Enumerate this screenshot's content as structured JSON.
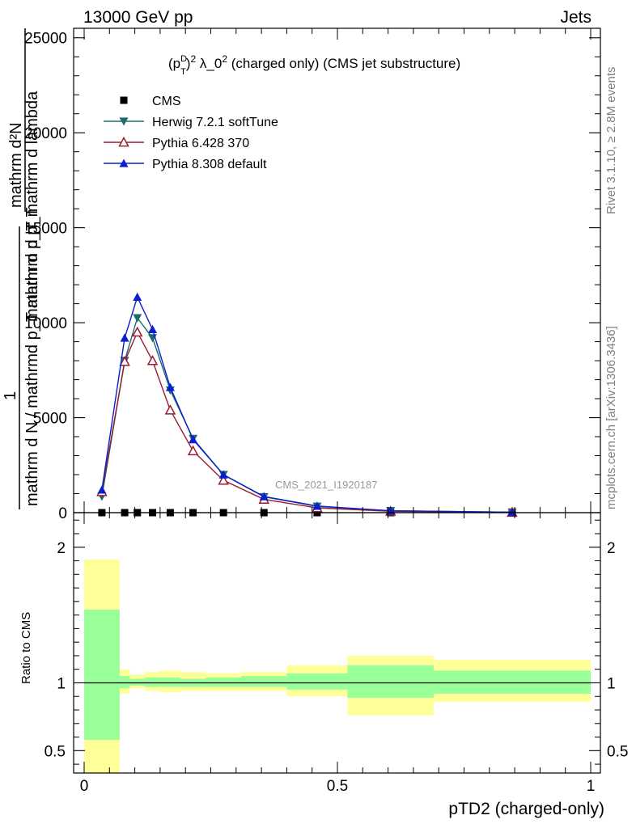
{
  "header": {
    "left": "13000 GeV pp",
    "right": "Jets"
  },
  "side_labels": {
    "rivet": "Rivet 3.1.10, ≥ 2.8M events",
    "mcplots": "mcplots.cern.ch [arXiv:1306.3436]"
  },
  "watermark": "CMS_2021_I1920187",
  "chart_data": [
    {
      "type": "line",
      "title_parts": {
        "p": "(p",
        "sup1": "D",
        "sub1": "T",
        "close": ")",
        "sup2": "2",
        "rest1": " λ_0",
        "sup3": "2",
        "rest2": " (charged only) (CMS jet substructure)"
      },
      "ylabel": {
        "line1": "mathrm d²N",
        "line2": "mathrm d p_T mathrm d lambda",
        "line3": "1",
        "line4": "mathrm d N / mathrmd p_T mathrm d p_T"
      },
      "xlim": [
        0,
        1
      ],
      "ylim": [
        0,
        25500
      ],
      "yticks": [
        0,
        5000,
        10000,
        15000,
        20000,
        25000
      ],
      "ytick_labels": [
        "0",
        "5000",
        "10000",
        "15000",
        "20000",
        "25000"
      ],
      "legend_position": "top-left",
      "series": [
        {
          "name": "CMS",
          "color": "#000000",
          "marker": "square",
          "x": [
            0.035,
            0.08,
            0.105,
            0.135,
            0.17,
            0.215,
            0.275,
            0.355,
            0.46,
            0.605,
            0.845
          ],
          "y": [
            0,
            0,
            0,
            0,
            0,
            0,
            0,
            0,
            0,
            0,
            0
          ]
        },
        {
          "name": "Herwig 7.2.1 softTune",
          "color": "#1e6b6b",
          "marker": "triangle-down",
          "x": [
            0.035,
            0.08,
            0.105,
            0.135,
            0.17,
            0.215,
            0.275,
            0.355,
            0.46,
            0.605,
            0.845
          ],
          "y": [
            850,
            8000,
            10250,
            9200,
            6450,
            3900,
            2000,
            830,
            330,
            100,
            22
          ]
        },
        {
          "name": "Pythia 6.428 370",
          "color": "#9b1b30",
          "marker": "triangle-up-open",
          "x": [
            0.035,
            0.08,
            0.105,
            0.135,
            0.17,
            0.215,
            0.275,
            0.355,
            0.46,
            0.605,
            0.845
          ],
          "y": [
            1100,
            7950,
            9500,
            8000,
            5400,
            3250,
            1700,
            700,
            250,
            70,
            15
          ]
        },
        {
          "name": "Pythia 8.308 default",
          "color": "#0a1ecc",
          "marker": "triangle-up",
          "x": [
            0.035,
            0.08,
            0.105,
            0.135,
            0.17,
            0.215,
            0.275,
            0.355,
            0.46,
            0.605,
            0.845
          ],
          "y": [
            1200,
            9200,
            11350,
            9650,
            6600,
            3850,
            2000,
            850,
            350,
            100,
            22
          ]
        }
      ]
    },
    {
      "type": "area",
      "ylabel": "Ratio to CMS",
      "xlabel": "pTD2 (charged-only)",
      "xlim": [
        0,
        1
      ],
      "ylim": [
        0.335,
        2.255
      ],
      "yticks": [
        0.5,
        1,
        2
      ],
      "ytick_labels": [
        "0.5",
        "1",
        "2"
      ],
      "xticks": [
        0,
        0.5,
        1
      ],
      "xtick_labels": [
        "0",
        "0.5",
        "1"
      ],
      "reference": 1,
      "bands": {
        "bin_edges": [
          0,
          0.07,
          0.09,
          0.12,
          0.15,
          0.19,
          0.24,
          0.31,
          0.4,
          0.52,
          0.69,
          1.0
        ],
        "inner_low": [
          0.58,
          0.96,
          0.98,
          0.97,
          0.97,
          0.97,
          0.97,
          0.97,
          0.95,
          0.89,
          0.92
        ],
        "inner_high": [
          1.54,
          1.05,
          1.03,
          1.04,
          1.04,
          1.03,
          1.04,
          1.05,
          1.07,
          1.13,
          1.09
        ],
        "outer_low": [
          0.335,
          0.92,
          0.96,
          0.94,
          0.93,
          0.94,
          0.94,
          0.94,
          0.9,
          0.76,
          0.86
        ],
        "outer_high": [
          1.91,
          1.1,
          1.06,
          1.08,
          1.09,
          1.08,
          1.07,
          1.08,
          1.13,
          1.2,
          1.17
        ],
        "inner_color": "#99ff99",
        "outer_color": "#ffff99"
      }
    }
  ]
}
